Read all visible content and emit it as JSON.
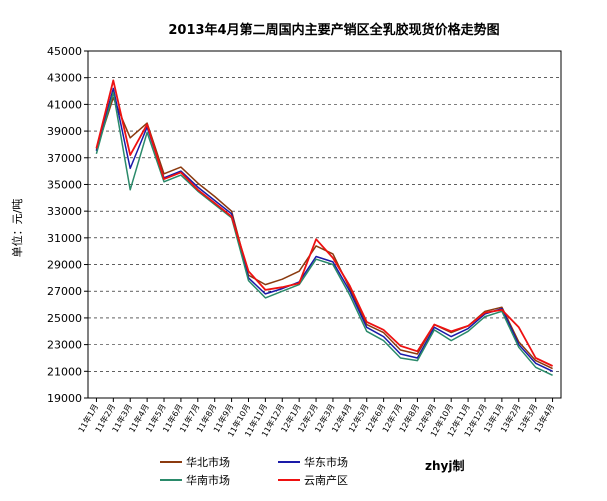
{
  "chart_data": {
    "type": "line",
    "title": "2013年4月第二周国内主要产销区全乳胶现货价格走势图",
    "ylabel": "单位：元/吨",
    "xlabel": "",
    "ylim": [
      19000,
      45000
    ],
    "yticks": [
      19000,
      21000,
      23000,
      25000,
      27000,
      29000,
      31000,
      33000,
      35000,
      37000,
      39000,
      41000,
      43000,
      45000
    ],
    "grid": true,
    "legend_position": "bottom",
    "credit": "zhyj制",
    "categories": [
      "11年1月",
      "11年2月",
      "11年3月",
      "11年4月",
      "11年5月",
      "11年6月",
      "11年7月",
      "11年8月",
      "11年9月",
      "11年10月",
      "11年11月",
      "11年12月",
      "12年1月",
      "12年2月",
      "12年3月",
      "12年4月",
      "12年5月",
      "12年6月",
      "12年7月",
      "12年8月",
      "12年9月",
      "12年10月",
      "12年11月",
      "12年12月",
      "13年1月",
      "13年2月",
      "13年3月",
      "13年4月"
    ],
    "series": [
      {
        "name": "华北市场",
        "color": "#8b3a0f",
        "values": [
          37600,
          41500,
          38500,
          39600,
          35800,
          36300,
          35100,
          34100,
          33000,
          28200,
          27500,
          27900,
          28500,
          30400,
          29800,
          27200,
          24500,
          23900,
          22600,
          22300,
          24500,
          23900,
          24400,
          25500,
          25800,
          23200,
          21800,
          21200
        ]
      },
      {
        "name": "华东市场",
        "color": "#1a1aa8",
        "values": [
          37500,
          42200,
          36200,
          39300,
          35500,
          36000,
          34800,
          33800,
          32800,
          28000,
          26800,
          27200,
          27700,
          29600,
          29200,
          27000,
          24300,
          23600,
          22300,
          22000,
          24300,
          23600,
          24200,
          25300,
          25700,
          23000,
          21600,
          21000
        ]
      },
      {
        "name": "华南市场",
        "color": "#2a8a6a",
        "values": [
          37300,
          41900,
          34600,
          38900,
          35200,
          35700,
          34500,
          33500,
          32500,
          27800,
          26500,
          27000,
          27500,
          29400,
          29000,
          26700,
          24000,
          23300,
          22000,
          21800,
          24100,
          23300,
          24000,
          25100,
          25500,
          22800,
          21300,
          20700
        ]
      },
      {
        "name": "云南产区",
        "color": "#ee1111",
        "values": [
          37700,
          42800,
          37200,
          39500,
          35400,
          35900,
          34600,
          33600,
          32600,
          28500,
          27100,
          27300,
          27600,
          30900,
          29500,
          27400,
          24700,
          24100,
          22900,
          22500,
          24500,
          24000,
          24400,
          25400,
          25600,
          24300,
          22000,
          21400
        ]
      }
    ]
  }
}
